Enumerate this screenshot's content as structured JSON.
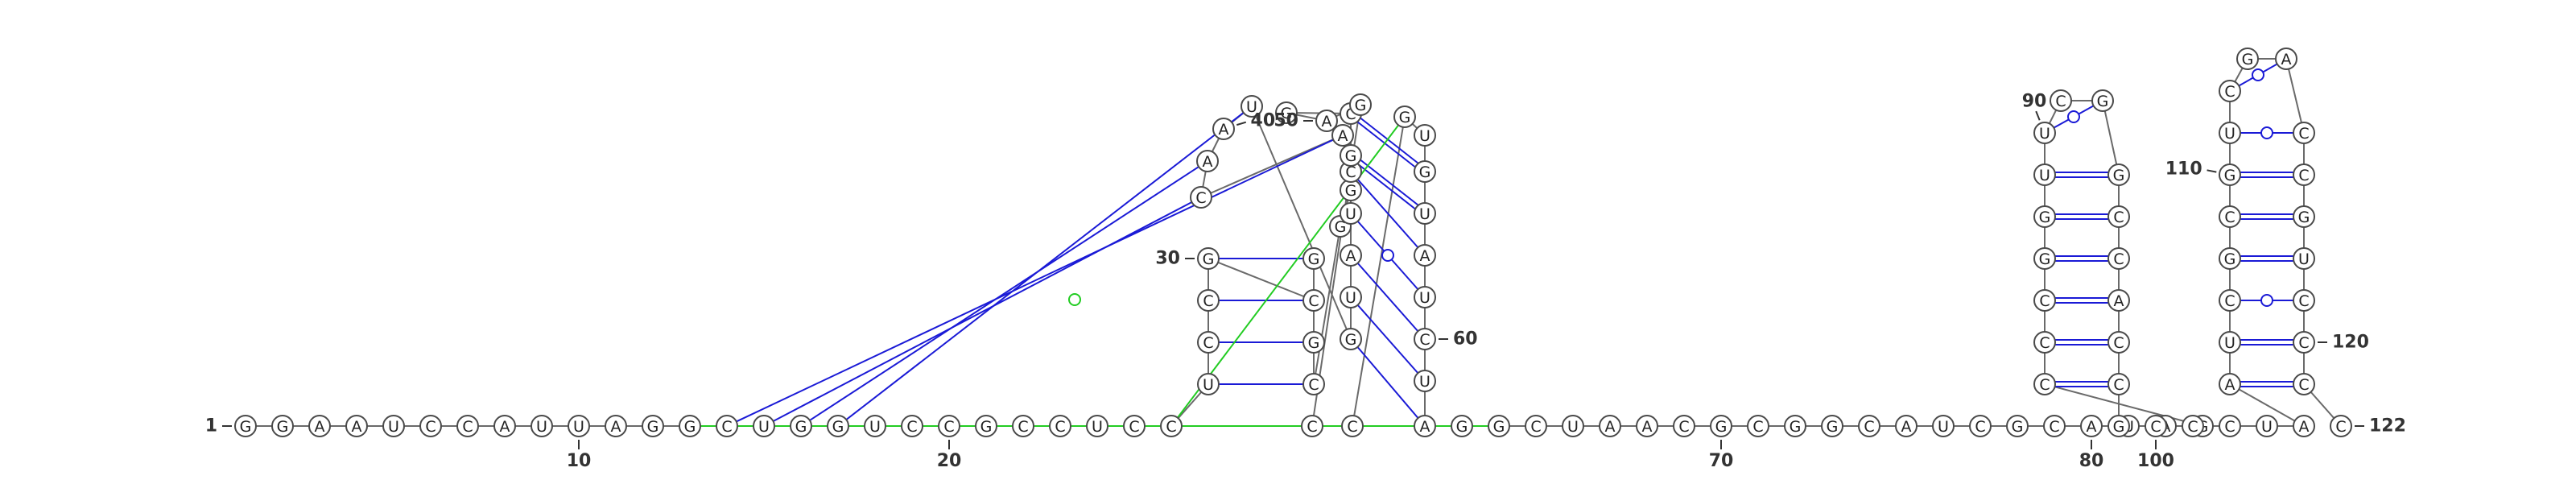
{
  "diagram": {
    "type": "rna-secondary-structure",
    "sequence_length": 122,
    "colors": {
      "pair_canonical": "#1a1ad6",
      "pair_wobble": "#1a1ad6",
      "pair_noncanonical": "#22cc22",
      "backbone": "#6a6a6a",
      "nucleotide_outline": "#4a4a4a"
    },
    "nucleotides": [
      "G",
      "G",
      "A",
      "A",
      "U",
      "C",
      "C",
      "A",
      "U",
      "U",
      "A",
      "G",
      "G",
      "C",
      "U",
      "G",
      "G",
      "U",
      "C",
      "C",
      "G",
      "C",
      "C",
      "U",
      "C",
      "C",
      "U",
      "C",
      "C",
      "G",
      "C",
      "G",
      "G",
      "C",
      "G",
      "G",
      "A",
      "C",
      "A",
      "A",
      "U",
      "G",
      "U",
      "A",
      "U",
      "C",
      "G",
      "C",
      "G",
      "A",
      "G",
      "C",
      "C",
      "G",
      "U",
      "G",
      "U",
      "A",
      "U",
      "C",
      "U",
      "A",
      "G",
      "G",
      "C",
      "U",
      "A",
      "A",
      "C",
      "G",
      "C",
      "G",
      "G",
      "C",
      "A",
      "U",
      "C",
      "G",
      "C",
      "A",
      "U",
      "A",
      "G",
      "C",
      "C",
      "C",
      "G",
      "G",
      "U",
      "U",
      "C",
      "G",
      "G",
      "C",
      "C",
      "A",
      "C",
      "C",
      "G",
      "C",
      "C",
      "C",
      "U",
      "A",
      "A",
      "U",
      "C",
      "G",
      "C",
      "G",
      "U",
      "C",
      "G",
      "A",
      "C",
      "C",
      "G",
      "U",
      "C",
      "C",
      "C",
      "C"
    ],
    "number_labels": [
      {
        "n": 1,
        "text": "1"
      },
      {
        "n": 10,
        "text": "10"
      },
      {
        "n": 20,
        "text": "20"
      },
      {
        "n": 30,
        "text": "30"
      },
      {
        "n": 40,
        "text": "40"
      },
      {
        "n": 50,
        "text": "50"
      },
      {
        "n": 60,
        "text": "60"
      },
      {
        "n": 70,
        "text": "70"
      },
      {
        "n": 80,
        "text": "80"
      },
      {
        "n": 90,
        "text": "90"
      },
      {
        "n": 100,
        "text": "100"
      },
      {
        "n": 110,
        "text": "110"
      },
      {
        "n": 120,
        "text": "120"
      },
      {
        "n": 122,
        "text": "122"
      }
    ],
    "base_pairs": [
      {
        "i": 28,
        "j": 32,
        "type": "canonical"
      },
      {
        "i": 29,
        "j": 31,
        "type": "canonical"
      },
      {
        "i": 30,
        "j": 33,
        "type": "canonical"
      },
      {
        "i": 27,
        "j": 34,
        "type": "canonical"
      },
      {
        "i": 42,
        "j": 62,
        "type": "canonical"
      },
      {
        "i": 43,
        "j": 61,
        "type": "canonical"
      },
      {
        "i": 44,
        "j": 60,
        "type": "canonical"
      },
      {
        "i": 45,
        "j": 59,
        "type": "wobble"
      },
      {
        "i": 46,
        "j": 58,
        "type": "canonical"
      },
      {
        "i": 47,
        "j": 57,
        "type": "canonical"
      },
      {
        "i": 48,
        "j": 56,
        "type": "canonical"
      },
      {
        "i": 84,
        "j": 98,
        "type": "canonical"
      },
      {
        "i": 85,
        "j": 97,
        "type": "canonical"
      },
      {
        "i": 86,
        "j": 96,
        "type": "canonical"
      },
      {
        "i": 87,
        "j": 95,
        "type": "canonical"
      },
      {
        "i": 88,
        "j": 94,
        "type": "canonical"
      },
      {
        "i": 89,
        "j": 93,
        "type": "canonical"
      },
      {
        "i": 90,
        "j": 92,
        "type": "wobble"
      },
      {
        "i": 105,
        "j": 121,
        "type": "canonical"
      },
      {
        "i": 106,
        "j": 120,
        "type": "canonical"
      },
      {
        "i": 107,
        "j": 119,
        "type": "wobble"
      },
      {
        "i": 108,
        "j": 118,
        "type": "canonical"
      },
      {
        "i": 109,
        "j": 117,
        "type": "canonical"
      },
      {
        "i": 110,
        "j": 116,
        "type": "canonical"
      },
      {
        "i": 111,
        "j": 115,
        "type": "wobble"
      },
      {
        "i": 112,
        "j": 114,
        "type": "wobble"
      },
      {
        "i": 14,
        "j": 37,
        "type": "canonical"
      },
      {
        "i": 15,
        "j": 38,
        "type": "canonical"
      },
      {
        "i": 16,
        "j": 39,
        "type": "canonical"
      },
      {
        "i": 17,
        "j": 41,
        "type": "canonical"
      },
      {
        "i": 13,
        "j": 63,
        "type": "noncanonical"
      },
      {
        "i": 19,
        "j": 64,
        "type": "noncanonical"
      },
      {
        "i": 25,
        "j": 52,
        "type": "noncanonical"
      },
      {
        "i": 26,
        "j": 53,
        "type": "noncanonical"
      },
      {
        "i": 26,
        "j": 54,
        "type": "noncanonical"
      }
    ]
  }
}
